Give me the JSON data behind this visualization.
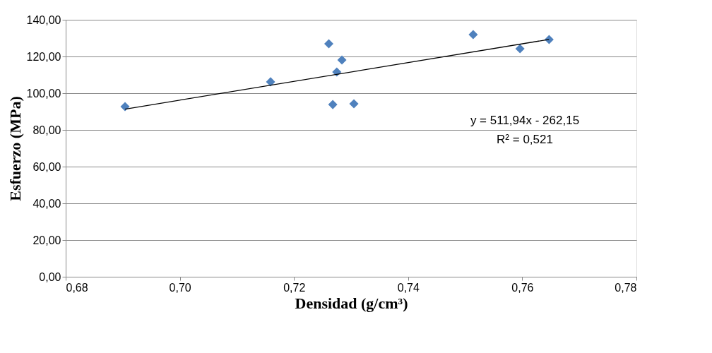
{
  "chart_data": {
    "type": "scatter",
    "xlabel": "Densidad (g/cm³)",
    "ylabel": "Esfuerzo (MPa)",
    "xlim": [
      0.68,
      0.78
    ],
    "ylim": [
      0,
      140
    ],
    "xticks": [
      {
        "value": 0.68,
        "label": "0,68"
      },
      {
        "value": 0.7,
        "label": "0,70"
      },
      {
        "value": 0.72,
        "label": "0,72"
      },
      {
        "value": 0.74,
        "label": "0,74"
      },
      {
        "value": 0.76,
        "label": "0,76"
      },
      {
        "value": 0.78,
        "label": "0,78"
      }
    ],
    "yticks": [
      {
        "value": 0,
        "label": "0,00"
      },
      {
        "value": 20,
        "label": "20,00"
      },
      {
        "value": 40,
        "label": "40,00"
      },
      {
        "value": 60,
        "label": "60,00"
      },
      {
        "value": 80,
        "label": "80,00"
      },
      {
        "value": 100,
        "label": "100,00"
      },
      {
        "value": 120,
        "label": "120,00"
      },
      {
        "value": 140,
        "label": "140,00"
      }
    ],
    "grid": "y",
    "marker": "diamond",
    "annotations": [
      "y = 511,94x - 262,15",
      "R² = 0,521"
    ],
    "series": [
      {
        "color": "#4f81bd",
        "x": [
          0.6904,
          0.7159,
          0.7261,
          0.7284,
          0.7275,
          0.7268,
          0.7305,
          0.7514,
          0.7596,
          0.7647
        ],
        "values": [
          92.7,
          106.2,
          126.9,
          118.1,
          111.5,
          93.8,
          94.2,
          131.9,
          124.2,
          129.2
        ]
      },
      {
        "type": "line",
        "color": "#000000",
        "line_style": "solid",
        "marker": "none",
        "x": [
          0.6904,
          0.7647
        ],
        "values": [
          91.3,
          129.3
        ]
      }
    ]
  }
}
